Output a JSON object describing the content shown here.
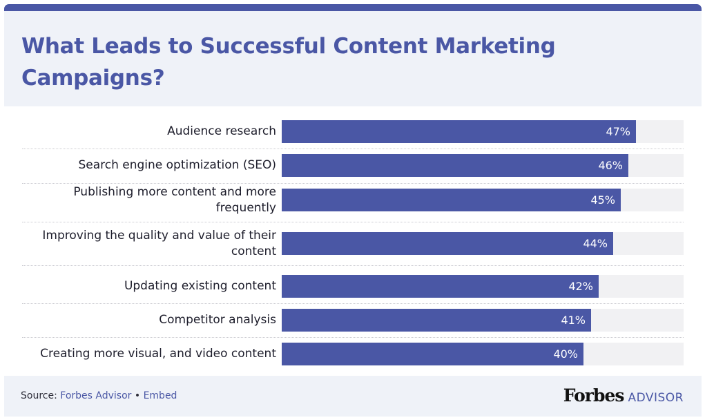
{
  "header": {
    "title": "What Leads to Successful Content Marketing Campaigns?"
  },
  "chart_data": {
    "type": "bar",
    "orientation": "horizontal",
    "title": "What Leads to Successful Content Marketing Campaigns?",
    "categories": [
      "Audience research",
      "Search engine optimization (SEO)",
      "Publishing more content and more frequently",
      "Improving the quality and value of their content",
      "Updating existing content",
      "Competitor analysis",
      "Creating more visual, and video content"
    ],
    "values": [
      47,
      46,
      45,
      44,
      42,
      41,
      40
    ],
    "value_labels": [
      "47%",
      "46%",
      "45%",
      "44%",
      "42%",
      "41%",
      "40%"
    ],
    "xlim": [
      0,
      50
    ],
    "unit": "%",
    "grid": false,
    "legend": "none",
    "bar_color": "#4a57a5",
    "track_color": "#f1f1f3"
  },
  "footer": {
    "source_prefix": "Source: ",
    "source_link": "Forbes Advisor",
    "separator": " • ",
    "embed_link": "Embed",
    "brand_name": "Forbes",
    "brand_suffix": "ADVISOR"
  },
  "colors": {
    "accent": "#4a57a5",
    "panel": "#eff2f8",
    "text": "#1d1d2b"
  }
}
